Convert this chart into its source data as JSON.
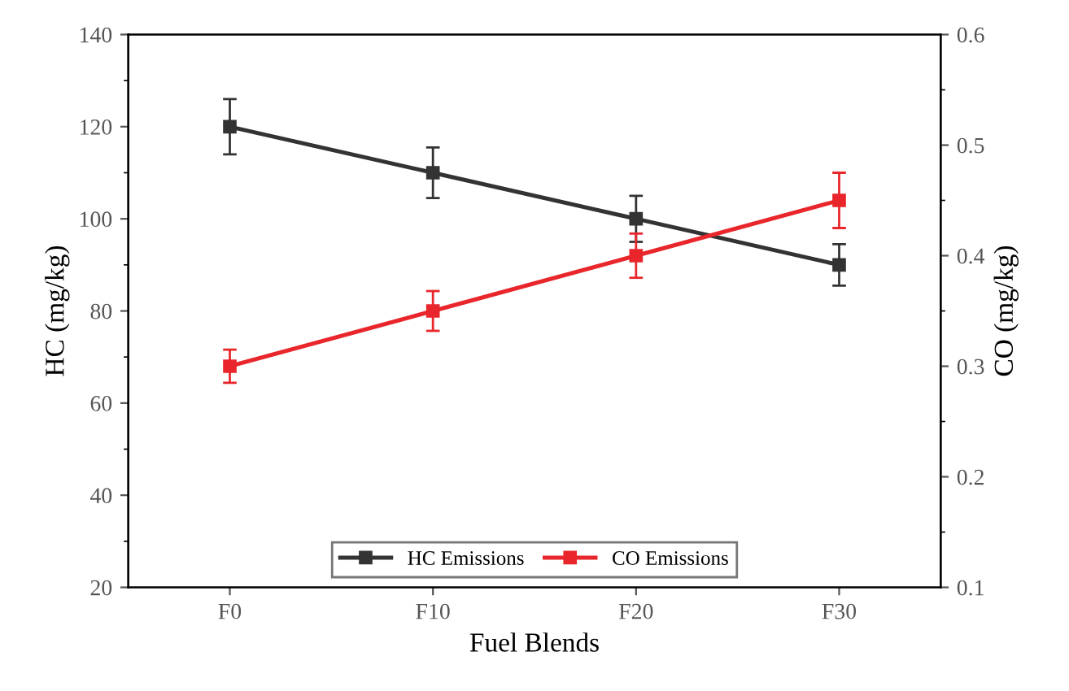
{
  "chart_data": {
    "type": "line",
    "xlabel": "Fuel Blends",
    "ylabel": "HC (mg/kg)",
    "y2label": "CO (mg/kg)",
    "categories": [
      "F0",
      "F10",
      "F20",
      "F30"
    ],
    "series": [
      {
        "name": "HC Emissions",
        "color": "#333333",
        "values": [
          120,
          110,
          100,
          90
        ],
        "errors": [
          6,
          5.5,
          5,
          4.5
        ]
      },
      {
        "name": "CO Emissions",
        "color": "#e8262b",
        "values": [
          0.3,
          0.35,
          0.4,
          0.45
        ],
        "errors": [
          0.015,
          0.018,
          0.02,
          0.025
        ],
        "axis": "y2"
      }
    ],
    "ylim": [
      20,
      140
    ],
    "yticks": [
      20,
      40,
      60,
      80,
      100,
      120,
      140
    ],
    "y2lim": [
      0.1,
      0.6
    ],
    "y2ticks": [
      0.1,
      0.2,
      0.3,
      0.4,
      0.5,
      0.6
    ],
    "marker": "square",
    "line_style": "solid",
    "legend": "bottom",
    "grid": false
  }
}
